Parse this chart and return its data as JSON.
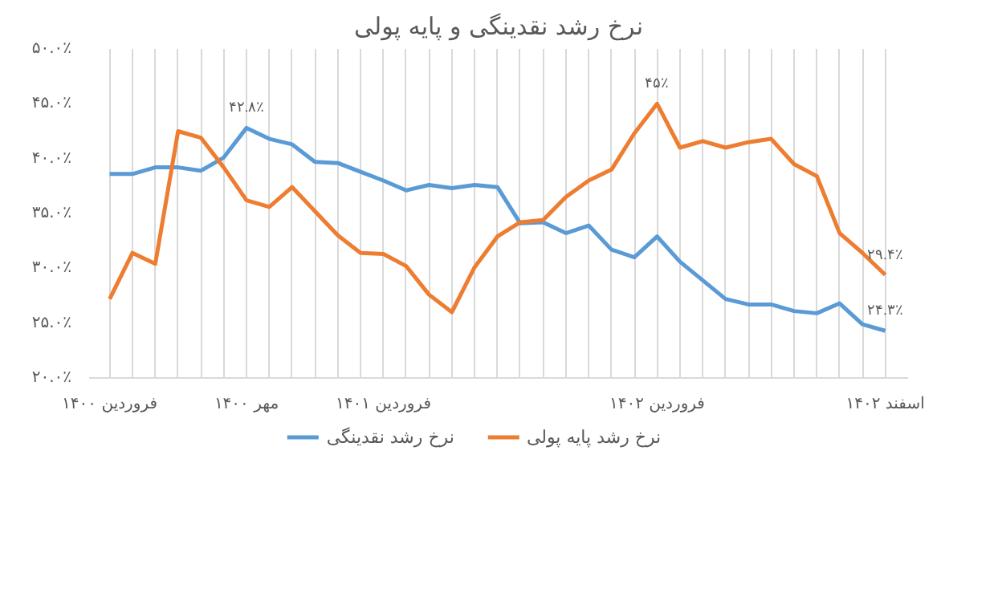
{
  "chart_data": {
    "type": "line",
    "title": "نرخ رشد نقدینگی و پایه پولی",
    "categories": [
      "فروردین ۱۴۰۰",
      null,
      null,
      null,
      null,
      null,
      "مهر ۱۴۰۰",
      null,
      null,
      null,
      null,
      null,
      "فروردین ۱۴۰۱",
      null,
      null,
      null,
      null,
      null,
      null,
      null,
      null,
      null,
      null,
      null,
      "فروردین ۱۴۰۲",
      null,
      null,
      null,
      null,
      null,
      null,
      null,
      null,
      null,
      "اسفند ۱۴۰۲"
    ],
    "series": [
      {
        "name": "نرخ رشد نقدینگی",
        "color": "#5b9bd5",
        "values": [
          38.6,
          38.6,
          39.2,
          39.2,
          38.9,
          40.1,
          42.8,
          41.8,
          41.3,
          39.7,
          39.6,
          38.8,
          38.0,
          37.1,
          37.6,
          37.3,
          37.6,
          37.4,
          34.1,
          34.2,
          33.2,
          33.9,
          31.7,
          31.0,
          32.9,
          30.6,
          28.9,
          27.2,
          26.7,
          26.7,
          26.1,
          25.9,
          26.8,
          24.9,
          24.3
        ],
        "value_labels": [
          null,
          null,
          null,
          null,
          null,
          null,
          "۴۲.۸٪",
          null,
          null,
          null,
          null,
          null,
          null,
          null,
          null,
          null,
          null,
          null,
          null,
          null,
          null,
          null,
          null,
          null,
          null,
          null,
          null,
          null,
          null,
          null,
          null,
          null,
          null,
          null,
          "۲۴.۳٪"
        ]
      },
      {
        "name": "نرخ رشد پایه پولی",
        "color": "#ed7d31",
        "values": [
          27.2,
          31.4,
          30.4,
          42.5,
          41.9,
          39.2,
          36.2,
          35.6,
          37.4,
          35.2,
          33.0,
          31.4,
          31.3,
          30.2,
          27.6,
          26.0,
          30.1,
          32.9,
          34.2,
          34.4,
          36.5,
          38.0,
          39.0,
          42.3,
          45.0,
          41.0,
          41.6,
          41.0,
          41.5,
          41.8,
          39.5,
          38.4,
          33.2,
          31.4,
          29.4
        ],
        "value_labels": [
          null,
          null,
          null,
          null,
          null,
          null,
          null,
          null,
          null,
          null,
          null,
          null,
          null,
          null,
          null,
          null,
          null,
          null,
          null,
          null,
          null,
          null,
          null,
          null,
          "۴۵٪",
          null,
          null,
          null,
          null,
          null,
          null,
          null,
          null,
          null,
          "۲۹.۴٪"
        ]
      }
    ],
    "ylim": [
      20,
      50
    ],
    "yticks": [
      {
        "value": 20,
        "label": "۲۰.۰٪"
      },
      {
        "value": 25,
        "label": "۲۵.۰٪"
      },
      {
        "value": 30,
        "label": "۳۰.۰٪"
      },
      {
        "value": 35,
        "label": "۳۵.۰٪"
      },
      {
        "value": 40,
        "label": "۴۰.۰٪"
      },
      {
        "value": 45,
        "label": "۴۵.۰٪"
      },
      {
        "value": 50,
        "label": "۵۰.۰٪"
      }
    ],
    "grid": "x",
    "legend": "bottom",
    "marker": "none",
    "line_style": "solid"
  }
}
